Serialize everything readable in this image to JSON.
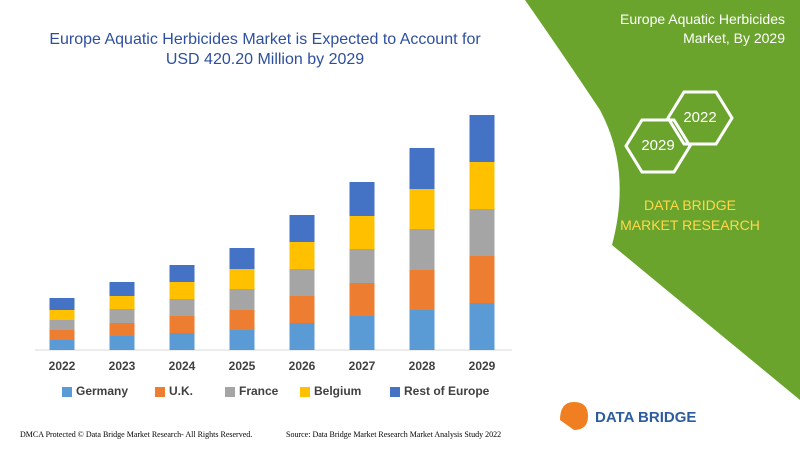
{
  "chart_data": {
    "type": "stacked-bar",
    "title": "Europe Aquatic Herbicides Market is Expected to Account for USD 420.20 Million by 2029",
    "categories": [
      "2022",
      "2023",
      "2024",
      "2025",
      "2026",
      "2027",
      "2028",
      "2029"
    ],
    "series": [
      {
        "name": "Germany",
        "color": "#5b9bd5",
        "values": [
          10,
          14,
          17,
          20,
          27,
          34,
          40,
          47
        ]
      },
      {
        "name": "U.K.",
        "color": "#ed7d31",
        "values": [
          10,
          13,
          17,
          20,
          27,
          33,
          40,
          47
        ]
      },
      {
        "name": "France",
        "color": "#a5a5a5",
        "values": [
          10,
          14,
          17,
          21,
          27,
          34,
          41,
          47
        ]
      },
      {
        "name": "Belgium",
        "color": "#ffc000",
        "values": [
          10,
          13,
          17,
          20,
          27,
          33,
          40,
          47
        ]
      },
      {
        "name": "Rest of Europe",
        "color": "#4472c4",
        "values": [
          12,
          14,
          17,
          21,
          27,
          34,
          41,
          47
        ]
      }
    ]
  },
  "panel": {
    "heading": "Europe Aquatic Herbicides Market, By 2029",
    "hex_a": "2022",
    "hex_b": "2029",
    "brand": "DATA BRIDGE MARKET RESEARCH"
  },
  "logo": {
    "text": "DATA BRIDGE"
  },
  "footer": {
    "left": "DMCA Protected © Data Bridge Market Research- All Rights Reserved.",
    "right": "Source: Data Bridge Market Research Market Analysis Study 2022"
  }
}
